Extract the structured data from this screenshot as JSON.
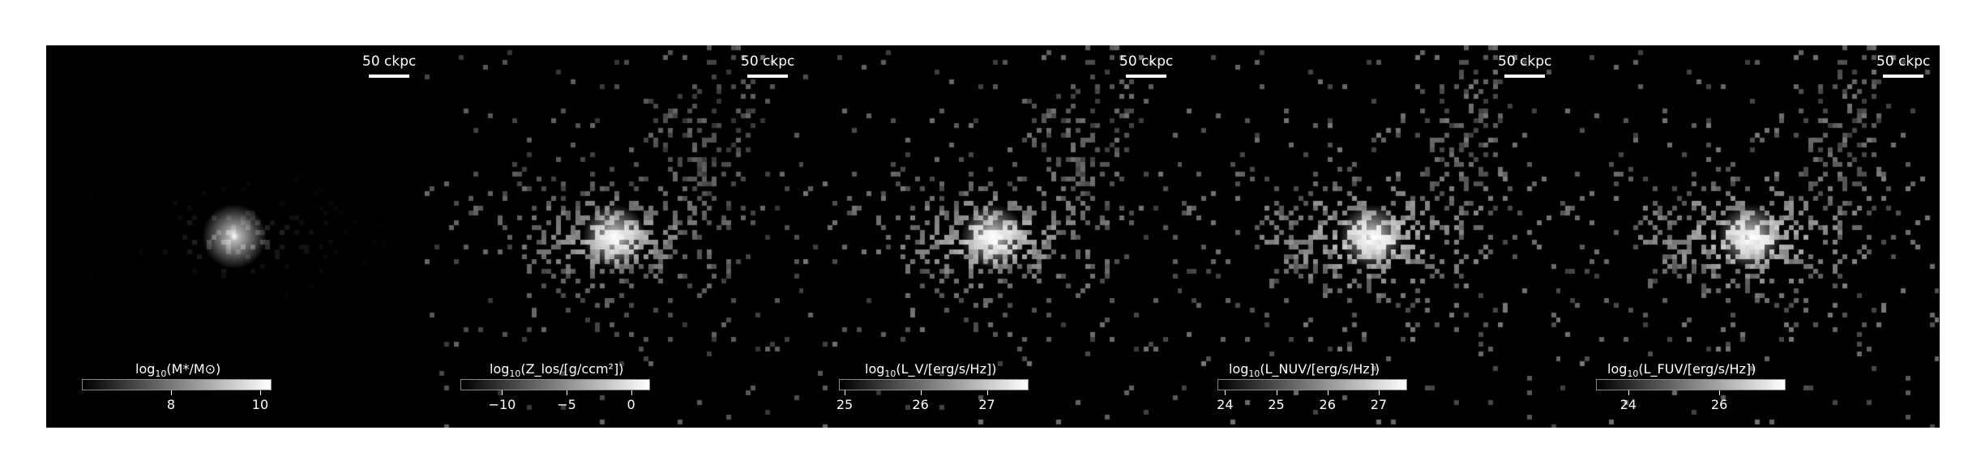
{
  "panels": [
    {
      "scalebar": "50 ckpc",
      "colorbar": {
        "prefix": "log",
        "sub": "10",
        "body": "(M*/M⊙)",
        "ticks": [
          "8",
          "10"
        ],
        "tick_fracs": [
          0.47,
          0.94
        ]
      },
      "style": {
        "spread": 0.55,
        "brightness": 0.55,
        "core": 1.0
      }
    },
    {
      "scalebar": "50 ckpc",
      "colorbar": {
        "prefix": "log",
        "sub": "10",
        "body": "(Z_los/[g/ccm²])",
        "ticks": [
          "−10",
          "−5",
          "0"
        ],
        "tick_fracs": [
          0.22,
          0.56,
          0.9
        ]
      },
      "style": {
        "spread": 1.0,
        "brightness": 0.8,
        "core": 1.0
      }
    },
    {
      "scalebar": "50 ckpc",
      "colorbar": {
        "prefix": "log",
        "sub": "10",
        "body": "(L_V/[erg/s/Hz])",
        "ticks": [
          "25",
          "26",
          "27"
        ],
        "tick_fracs": [
          0.03,
          0.43,
          0.78
        ]
      },
      "style": {
        "spread": 1.0,
        "brightness": 0.9,
        "core": 0.9
      }
    },
    {
      "scalebar": "50 ckpc",
      "colorbar": {
        "prefix": "log",
        "sub": "10",
        "body": "(L_NUV/[erg/s/Hz])",
        "ticks": [
          "24",
          "25",
          "26",
          "27"
        ],
        "tick_fracs": [
          0.04,
          0.31,
          0.58,
          0.85
        ]
      },
      "style": {
        "spread": 1.05,
        "brightness": 0.95,
        "core": 0.85
      }
    },
    {
      "scalebar": "50 ckpc",
      "colorbar": {
        "prefix": "log",
        "sub": "10",
        "body": "(L_FUV/[erg/s/Hz])",
        "ticks": [
          "24",
          "26"
        ],
        "tick_fracs": [
          0.17,
          0.65
        ]
      },
      "style": {
        "spread": 1.05,
        "brightness": 0.95,
        "core": 0.85
      }
    }
  ]
}
